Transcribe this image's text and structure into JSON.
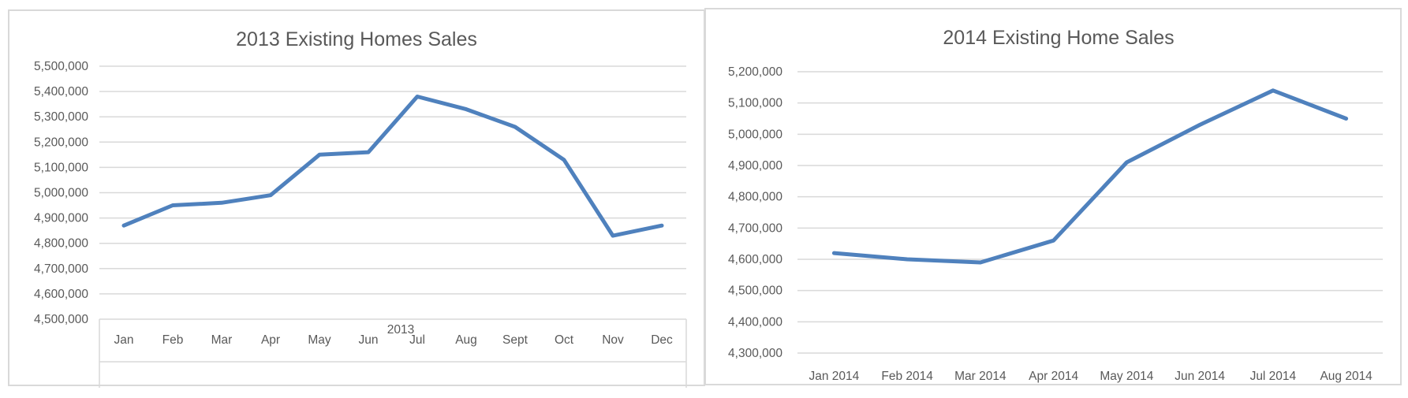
{
  "colors": {
    "series": "#4f81bd",
    "grid": "#d9d9d9",
    "text": "#595959"
  },
  "chart_data": [
    {
      "type": "line",
      "title": "2013 Existing Homes Sales",
      "categories": [
        "Jan",
        "Feb",
        "Mar",
        "Apr",
        "May",
        "Jun",
        "Jul",
        "Aug",
        "Sept",
        "Oct",
        "Nov",
        "Dec"
      ],
      "group_label": "2013",
      "values": [
        4870000,
        4950000,
        4960000,
        4990000,
        5150000,
        5160000,
        5380000,
        5330000,
        5260000,
        5130000,
        4830000,
        4870000
      ],
      "ylim": [
        4500000,
        5500000
      ],
      "yticks": [
        "4,500,000",
        "4,600,000",
        "4,700,000",
        "4,800,000",
        "4,900,000",
        "5,000,000",
        "5,100,000",
        "5,200,000",
        "5,300,000",
        "5,400,000",
        "5,500,000"
      ],
      "grid": true,
      "legend": "none"
    },
    {
      "type": "line",
      "title": "2014 Existing Home Sales",
      "categories": [
        "Jan 2014",
        "Feb 2014",
        "Mar 2014",
        "Apr 2014",
        "May 2014",
        "Jun 2014",
        "Jul 2014",
        "Aug 2014"
      ],
      "values": [
        4620000,
        4600000,
        4590000,
        4660000,
        4910000,
        5030000,
        5140000,
        5050000
      ],
      "ylim": [
        4300000,
        5200000
      ],
      "yticks": [
        "4,300,000",
        "4,400,000",
        "4,500,000",
        "4,600,000",
        "4,700,000",
        "4,800,000",
        "4,900,000",
        "5,000,000",
        "5,100,000",
        "5,200,000"
      ],
      "grid": true,
      "legend": "none"
    }
  ]
}
